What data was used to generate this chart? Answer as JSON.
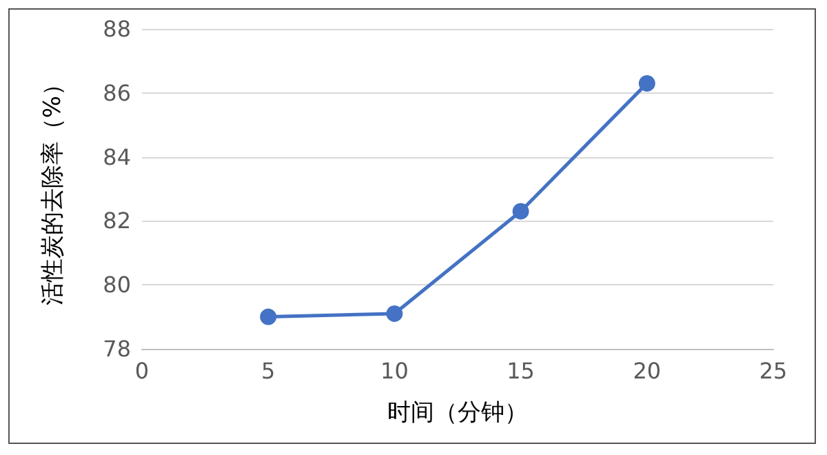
{
  "chart_data": {
    "type": "line",
    "xlabel": "时间（分钟）",
    "ylabel": "活性炭的去除率（%）",
    "x": [
      5,
      10,
      15,
      20
    ],
    "series": [
      {
        "color": "#4472c4",
        "values": [
          79.0,
          79.1,
          82.3,
          86.3
        ]
      }
    ],
    "xlim": [
      0,
      25
    ],
    "xticks": [
      0,
      5,
      10,
      15,
      20,
      25
    ],
    "ylim": [
      78,
      88
    ],
    "yticks": [
      78,
      80,
      82,
      84,
      86,
      88
    ],
    "grid": "y",
    "marker": "circle",
    "line_style": "solid"
  }
}
